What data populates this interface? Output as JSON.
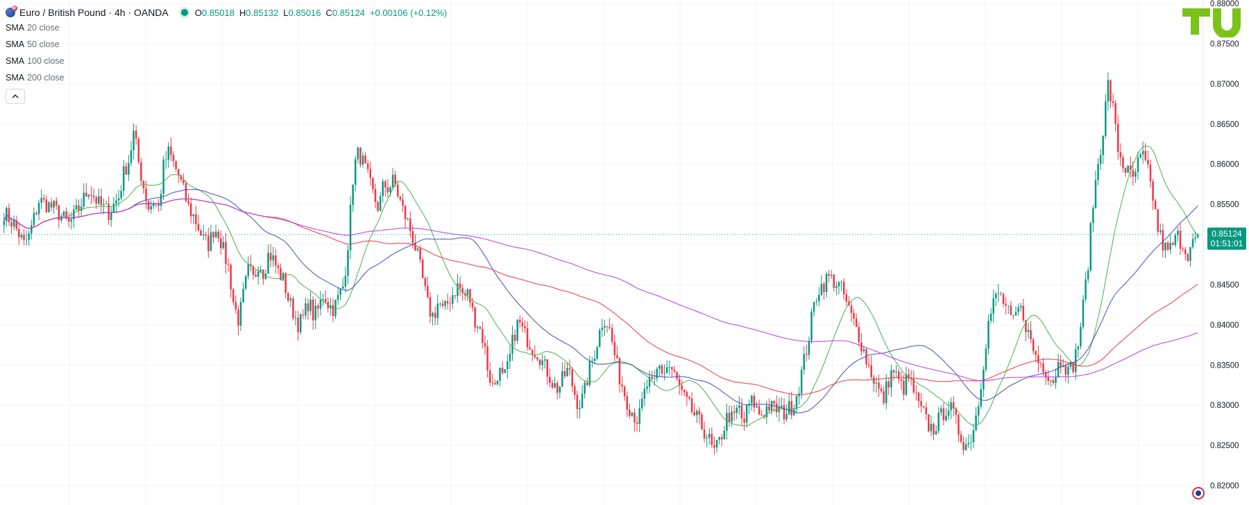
{
  "header": {
    "title": "Euro / British Pound · 4h · OANDA",
    "open_label": "O",
    "open": "0.85018",
    "high_label": "H",
    "high": "0.85132",
    "low_label": "L",
    "low": "0.85016",
    "close_label": "C",
    "close": "0.85124",
    "change": "+0.00106 (+0.12%)"
  },
  "indicators": [
    {
      "name": "SMA",
      "params": "20 close",
      "color": "#4caf50"
    },
    {
      "name": "SMA",
      "params": "50 close",
      "color": "#3f51b5"
    },
    {
      "name": "SMA",
      "params": "100 close",
      "color": "#f23645"
    },
    {
      "name": "SMA",
      "params": "200 close",
      "color": "#b43ee0"
    }
  ],
  "collapse_icon": "chevron-up-icon",
  "last_price": {
    "value": "0.85124",
    "countdown": "01:51:01"
  },
  "logo": {
    "icon": "tradingview-logo-icon",
    "color": "#7bc21b"
  },
  "colors": {
    "up": "#089981",
    "down": "#f23645",
    "grid": "#f0f3fa",
    "axis_text": "#131722"
  },
  "chart_data": {
    "type": "line",
    "instrument": "EUR/GBP",
    "timeframe": "4h",
    "y_ticks": [
      "0.88000",
      "0.87500",
      "0.87000",
      "0.86500",
      "0.86000",
      "0.85500",
      "0.85000",
      "0.84500",
      "0.84000",
      "0.83500",
      "0.83000",
      "0.82500",
      "0.82000"
    ],
    "ylim": [
      0.82,
      0.88
    ],
    "grid": true,
    "price_path": [
      [
        0,
        0.854
      ],
      [
        2,
        0.8525
      ],
      [
        4,
        0.85
      ],
      [
        5,
        0.851
      ],
      [
        7,
        0.8555
      ],
      [
        10,
        0.8545
      ],
      [
        13,
        0.8525
      ],
      [
        15,
        0.8545
      ],
      [
        17,
        0.857
      ],
      [
        19,
        0.855
      ],
      [
        21,
        0.854
      ],
      [
        23,
        0.856
      ],
      [
        24,
        0.859
      ],
      [
        25,
        0.8605
      ],
      [
        26,
        0.864
      ],
      [
        27,
        0.86
      ],
      [
        28,
        0.857
      ],
      [
        29,
        0.8545
      ],
      [
        30,
        0.8555
      ],
      [
        31,
        0.8545
      ],
      [
        32,
        0.86
      ],
      [
        33,
        0.8615
      ],
      [
        34,
        0.86
      ],
      [
        35,
        0.8585
      ],
      [
        36,
        0.8565
      ],
      [
        37,
        0.8545
      ],
      [
        38,
        0.8535
      ],
      [
        39,
        0.852
      ],
      [
        40,
        0.8505
      ],
      [
        41,
        0.85
      ],
      [
        42,
        0.852
      ],
      [
        43,
        0.8515
      ],
      [
        44,
        0.849
      ],
      [
        45,
        0.847
      ],
      [
        46,
        0.8425
      ],
      [
        47,
        0.8405
      ],
      [
        48,
        0.844
      ],
      [
        49,
        0.847
      ],
      [
        50,
        0.8455
      ],
      [
        51,
        0.848
      ],
      [
        52,
        0.8465
      ],
      [
        53,
        0.849
      ],
      [
        54,
        0.848
      ],
      [
        55,
        0.8465
      ],
      [
        56,
        0.8455
      ],
      [
        57,
        0.843
      ],
      [
        58,
        0.8415
      ],
      [
        59,
        0.84
      ],
      [
        60,
        0.841
      ],
      [
        61,
        0.843
      ],
      [
        62,
        0.841
      ],
      [
        63,
        0.842
      ],
      [
        64,
        0.844
      ],
      [
        65,
        0.8425
      ],
      [
        66,
        0.842
      ],
      [
        67,
        0.8435
      ],
      [
        68,
        0.845
      ],
      [
        69,
        0.851
      ],
      [
        70,
        0.8595
      ],
      [
        71,
        0.8615
      ],
      [
        72,
        0.86
      ],
      [
        73,
        0.858
      ],
      [
        74,
        0.856
      ],
      [
        75,
        0.8545
      ],
      [
        76,
        0.8575
      ],
      [
        77,
        0.857
      ],
      [
        78,
        0.858
      ],
      [
        79,
        0.856
      ],
      [
        80,
        0.854
      ],
      [
        81,
        0.8525
      ],
      [
        82,
        0.8505
      ],
      [
        83,
        0.848
      ],
      [
        84,
        0.845
      ],
      [
        85,
        0.842
      ],
      [
        86,
        0.841
      ],
      [
        87,
        0.843
      ],
      [
        88,
        0.8415
      ],
      [
        89,
        0.843
      ],
      [
        90,
        0.844
      ],
      [
        91,
        0.845
      ],
      [
        92,
        0.8435
      ],
      [
        93,
        0.844
      ],
      [
        94,
        0.841
      ],
      [
        95,
        0.84
      ],
      [
        96,
        0.838
      ],
      [
        97,
        0.834
      ],
      [
        98,
        0.832
      ],
      [
        99,
        0.8345
      ],
      [
        100,
        0.833
      ],
      [
        101,
        0.835
      ],
      [
        102,
        0.8385
      ],
      [
        103,
        0.8405
      ],
      [
        104,
        0.839
      ],
      [
        105,
        0.838
      ],
      [
        106,
        0.837
      ],
      [
        107,
        0.8365
      ],
      [
        108,
        0.835
      ],
      [
        109,
        0.834
      ],
      [
        110,
        0.8325
      ],
      [
        111,
        0.832
      ],
      [
        112,
        0.8335
      ],
      [
        113,
        0.8345
      ],
      [
        114,
        0.832
      ],
      [
        115,
        0.83
      ],
      [
        116,
        0.831
      ],
      [
        117,
        0.834
      ],
      [
        118,
        0.836
      ],
      [
        119,
        0.8385
      ],
      [
        120,
        0.841
      ],
      [
        121,
        0.84
      ],
      [
        122,
        0.837
      ],
      [
        123,
        0.834
      ],
      [
        124,
        0.832
      ],
      [
        125,
        0.83
      ],
      [
        126,
        0.829
      ],
      [
        127,
        0.828
      ],
      [
        128,
        0.831
      ],
      [
        129,
        0.833
      ],
      [
        130,
        0.832
      ],
      [
        131,
        0.835
      ],
      [
        132,
        0.834
      ],
      [
        133,
        0.835
      ],
      [
        134,
        0.834
      ],
      [
        135,
        0.8325
      ],
      [
        136,
        0.831
      ],
      [
        137,
        0.83
      ],
      [
        138,
        0.829
      ],
      [
        139,
        0.828
      ],
      [
        140,
        0.827
      ],
      [
        141,
        0.826
      ],
      [
        142,
        0.824
      ],
      [
        143,
        0.825
      ],
      [
        144,
        0.827
      ],
      [
        145,
        0.829
      ],
      [
        146,
        0.828
      ],
      [
        147,
        0.83
      ],
      [
        148,
        0.8275
      ],
      [
        149,
        0.83
      ],
      [
        150,
        0.8305
      ],
      [
        151,
        0.829
      ],
      [
        152,
        0.829
      ],
      [
        153,
        0.83
      ],
      [
        154,
        0.8295
      ],
      [
        155,
        0.8295
      ],
      [
        156,
        0.829
      ],
      [
        157,
        0.8295
      ],
      [
        158,
        0.83
      ],
      [
        159,
        0.832
      ],
      [
        160,
        0.835
      ],
      [
        161,
        0.838
      ],
      [
        162,
        0.842
      ],
      [
        163,
        0.8445
      ],
      [
        164,
        0.845
      ],
      [
        165,
        0.846
      ],
      [
        166,
        0.8455
      ],
      [
        167,
        0.845
      ],
      [
        168,
        0.844
      ],
      [
        169,
        0.842
      ],
      [
        170,
        0.8405
      ],
      [
        171,
        0.839
      ],
      [
        172,
        0.837
      ],
      [
        173,
        0.835
      ],
      [
        174,
        0.8335
      ],
      [
        175,
        0.832
      ],
      [
        176,
        0.8305
      ],
      [
        177,
        0.833
      ],
      [
        178,
        0.8345
      ],
      [
        179,
        0.833
      ],
      [
        180,
        0.832
      ],
      [
        181,
        0.8335
      ],
      [
        182,
        0.832
      ],
      [
        183,
        0.83
      ],
      [
        184,
        0.829
      ],
      [
        185,
        0.8275
      ],
      [
        186,
        0.827
      ],
      [
        187,
        0.828
      ],
      [
        188,
        0.829
      ],
      [
        189,
        0.83
      ],
      [
        190,
        0.829
      ],
      [
        191,
        0.827
      ],
      [
        192,
        0.8255
      ],
      [
        193,
        0.825
      ],
      [
        194,
        0.827
      ],
      [
        195,
        0.83
      ],
      [
        196,
        0.835
      ],
      [
        197,
        0.84
      ],
      [
        198,
        0.8425
      ],
      [
        199,
        0.844
      ],
      [
        200,
        0.843
      ],
      [
        201,
        0.8415
      ],
      [
        202,
        0.84
      ],
      [
        203,
        0.842
      ],
      [
        204,
        0.8415
      ],
      [
        205,
        0.839
      ],
      [
        206,
        0.837
      ],
      [
        207,
        0.8355
      ],
      [
        208,
        0.835
      ],
      [
        209,
        0.834
      ],
      [
        210,
        0.833
      ],
      [
        211,
        0.835
      ],
      [
        212,
        0.836
      ],
      [
        213,
        0.834
      ],
      [
        214,
        0.835
      ],
      [
        215,
        0.8375
      ],
      [
        216,
        0.842
      ],
      [
        217,
        0.8475
      ],
      [
        218,
        0.855
      ],
      [
        219,
        0.86
      ],
      [
        220,
        0.864
      ],
      [
        221,
        0.87
      ],
      [
        222,
        0.867
      ],
      [
        223,
        0.862
      ],
      [
        224,
        0.86
      ],
      [
        225,
        0.859
      ],
      [
        226,
        0.858
      ],
      [
        227,
        0.86
      ],
      [
        228,
        0.861
      ],
      [
        229,
        0.859
      ],
      [
        230,
        0.856
      ],
      [
        231,
        0.852
      ],
      [
        232,
        0.85
      ],
      [
        233,
        0.849
      ],
      [
        234,
        0.85
      ],
      [
        235,
        0.851
      ],
      [
        236,
        0.85
      ],
      [
        237,
        0.849
      ],
      [
        238,
        0.85
      ],
      [
        239,
        0.8512
      ]
    ],
    "series": [
      {
        "name": "SMA 20 close",
        "color": "#4caf50"
      },
      {
        "name": "SMA 50 close",
        "color": "#3f51b5"
      },
      {
        "name": "SMA 100 close",
        "color": "#f23645"
      },
      {
        "name": "SMA 200 close",
        "color": "#b43ee0"
      }
    ]
  }
}
